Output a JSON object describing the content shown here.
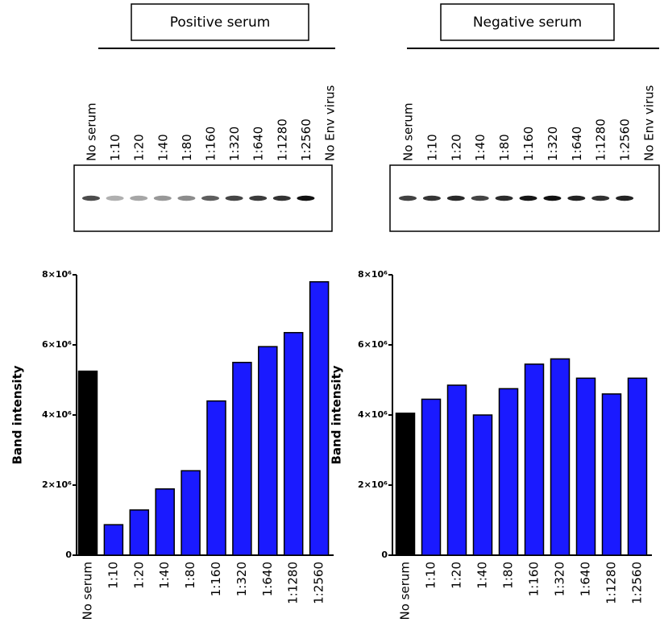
{
  "chart_data": [
    {
      "type": "bar",
      "title": "Positive serum",
      "lane_labels": [
        "No serum",
        "1:10",
        "1:20",
        "1:40",
        "1:80",
        "1:160",
        "1:320",
        "1:640",
        "1:1280",
        "1:2560",
        "No Env virus"
      ],
      "ylabel": "Band intensity",
      "categories": [
        "No serum",
        "1:10",
        "1:20",
        "1:40",
        "1:80",
        "1:160",
        "1:320",
        "1:640",
        "1:1280",
        "1:2560"
      ],
      "values": [
        5250000,
        870000,
        1290000,
        1890000,
        2410000,
        4400000,
        5500000,
        5950000,
        6350000,
        7800000
      ],
      "colors": [
        "#000000",
        "#1a1aff",
        "#1a1aff",
        "#1a1aff",
        "#1a1aff",
        "#1a1aff",
        "#1a1aff",
        "#1a1aff",
        "#1a1aff",
        "#1a1aff"
      ],
      "ylim": [
        0,
        8000000
      ],
      "yticks": [
        0,
        {
          "value": 2000000,
          "label": "2×10⁶"
        },
        {
          "value": 4000000,
          "label": "4×10⁶"
        },
        {
          "value": 6000000,
          "label": "6×10⁶"
        },
        {
          "value": 8000000,
          "label": "8×10⁶"
        }
      ]
    },
    {
      "type": "bar",
      "title": "Negative serum",
      "lane_labels": [
        "No serum",
        "1:10",
        "1:20",
        "1:40",
        "1:80",
        "1:160",
        "1:320",
        "1:640",
        "1:1280",
        "1:2560",
        "No Env virus"
      ],
      "ylabel": "Band intensity",
      "categories": [
        "No serum",
        "1:10",
        "1:20",
        "1:40",
        "1:80",
        "1:160",
        "1:320",
        "1:640",
        "1:1280",
        "1:2560"
      ],
      "values": [
        4050000,
        4450000,
        4850000,
        4000000,
        4750000,
        5450000,
        5600000,
        5050000,
        4600000,
        5050000
      ],
      "colors": [
        "#000000",
        "#1a1aff",
        "#1a1aff",
        "#1a1aff",
        "#1a1aff",
        "#1a1aff",
        "#1a1aff",
        "#1a1aff",
        "#1a1aff",
        "#1a1aff"
      ],
      "ylim": [
        0,
        8000000
      ],
      "yticks": [
        0,
        {
          "value": 2000000,
          "label": "2×10⁶"
        },
        {
          "value": 4000000,
          "label": "4×10⁶"
        },
        {
          "value": 6000000,
          "label": "6×10⁶"
        },
        {
          "value": 8000000,
          "label": "8×10⁶"
        }
      ]
    }
  ]
}
